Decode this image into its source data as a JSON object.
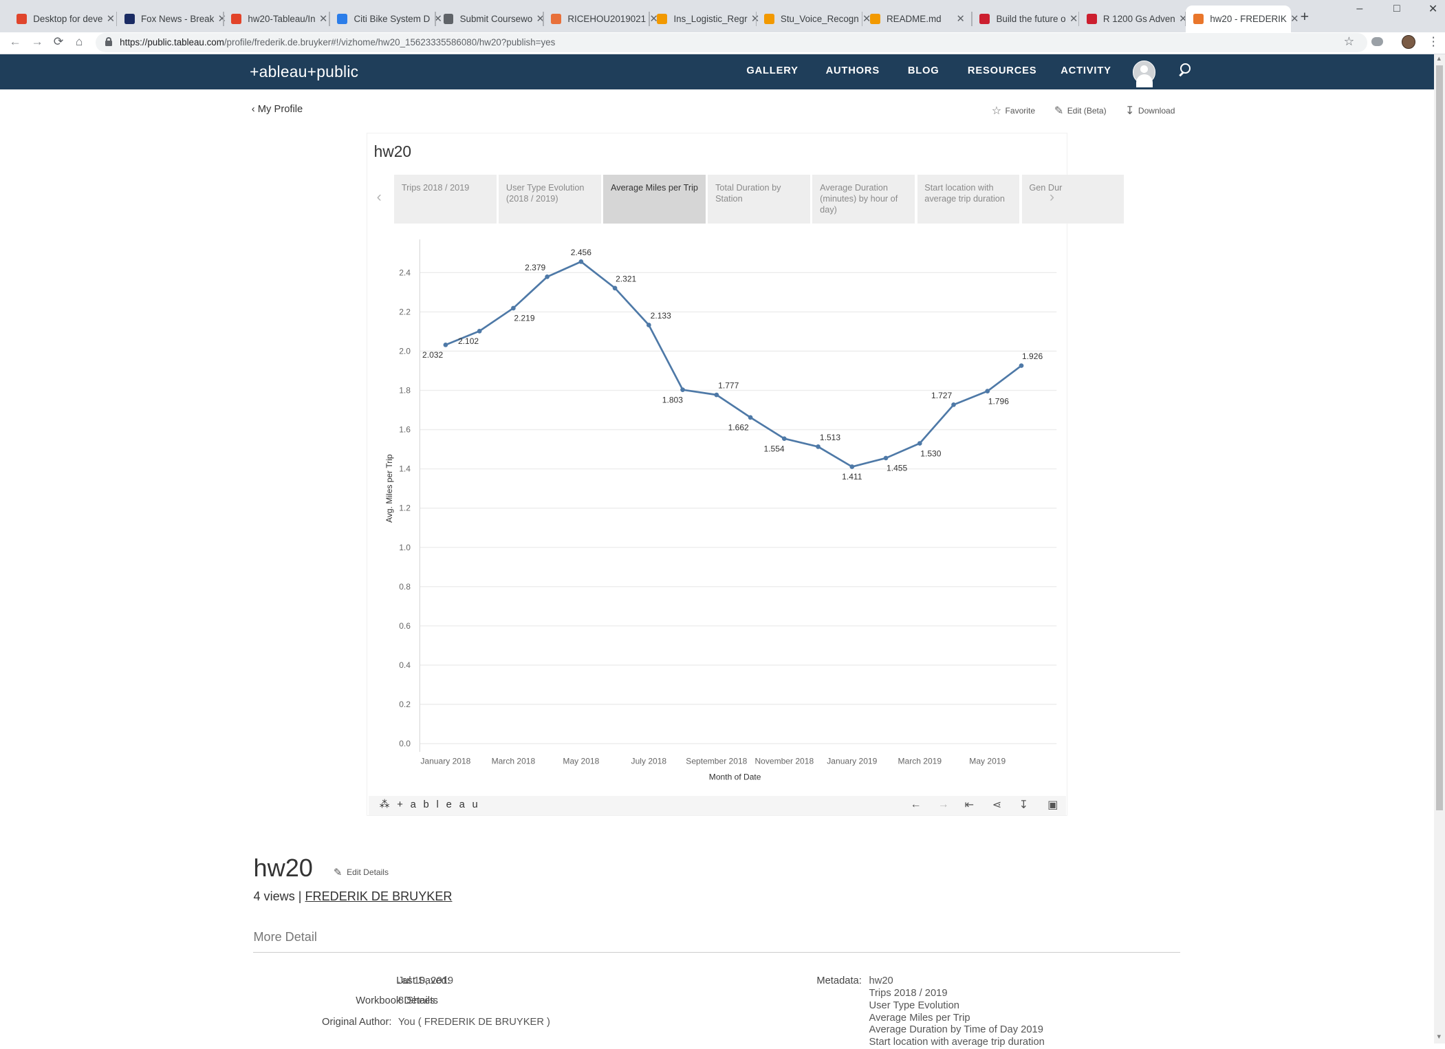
{
  "browser": {
    "tabs": [
      {
        "label": "Desktop for deve",
        "color": "#e0452c"
      },
      {
        "label": "Fox News - Break",
        "color": "#1a2b63"
      },
      {
        "label": "hw20-Tableau/In",
        "color": "#e24329"
      },
      {
        "label": "Citi Bike System D",
        "color": "#2b7de9"
      },
      {
        "label": "Submit Coursewo",
        "color": "#5f6368"
      },
      {
        "label": "RICEHOU2019021",
        "color": "#e8703a"
      },
      {
        "label": "Ins_Logistic_Regr",
        "color": "#f29900"
      },
      {
        "label": "Stu_Voice_Recogn",
        "color": "#f29900"
      },
      {
        "label": "README.md",
        "color": "#f29900"
      },
      {
        "label": "Build the future o",
        "color": "#cc1f2f"
      },
      {
        "label": "R 1200 Gs Adven",
        "color": "#cc1f2f"
      },
      {
        "label": "hw20 - FREDERIK",
        "color": "#e9762b"
      }
    ],
    "new_tab": "+",
    "url_host": "https://public.tableau.com",
    "url_path": "/profile/frederik.de.bruyker#!/vizhome/hw20_15623335586080/hw20?publish=yes"
  },
  "site": {
    "logo": "+ableau+public",
    "nav": [
      "GALLERY",
      "AUTHORS",
      "BLOG",
      "RESOURCES",
      "ACTIVITY"
    ]
  },
  "page": {
    "back_link": "My Profile",
    "favorite": "Favorite",
    "edit": "Edit (Beta)",
    "download": "Download"
  },
  "viz": {
    "title": "hw20",
    "tabs": [
      "Trips 2018 / 2019",
      "User Type Evolution (2018 / 2019)",
      "Average Miles per Trip",
      "Total Duration by Station",
      "Average Duration (minutes) by hour of day)",
      "Start location with average trip duration",
      "Gen Dur"
    ],
    "selected_tab": 2,
    "footer_logo": "+ a b l e a u"
  },
  "chart_data": {
    "type": "line",
    "xlabel": "Month of Date",
    "ylabel": "Avg. Miles per Trip",
    "ylim": [
      0,
      2.5
    ],
    "yticks": [
      "0.0",
      "0.2",
      "0.4",
      "0.6",
      "0.8",
      "1.0",
      "1.2",
      "1.4",
      "1.6",
      "1.8",
      "2.0",
      "2.2",
      "2.4"
    ],
    "x": [
      "January 2018",
      "February 2018",
      "March 2018",
      "April 2018",
      "May 2018",
      "June 2018",
      "July 2018",
      "August 2018",
      "September 2018",
      "October 2018",
      "November 2018",
      "December 2018",
      "January 2019",
      "February 2019",
      "March 2019",
      "April 2019",
      "May 2019",
      "June 2019"
    ],
    "xtick_labels": [
      "January 2018",
      "March 2018",
      "May 2018",
      "July 2018",
      "September 2018",
      "November 2018",
      "January 2019",
      "March 2019",
      "May 2019"
    ],
    "values": [
      2.032,
      2.102,
      2.219,
      2.379,
      2.456,
      2.321,
      2.133,
      1.803,
      1.777,
      1.662,
      1.554,
      1.513,
      1.411,
      1.455,
      1.53,
      1.727,
      1.796,
      1.926
    ],
    "labels": [
      "2.032",
      "2.102",
      "2.219",
      "2.379",
      "2.456",
      "2.321",
      "2.133",
      "1.803",
      "1.777",
      "1.662",
      "1.554",
      "1.513",
      "1.411",
      "1.455",
      "1.530",
      "1.727",
      "1.796",
      "1.926"
    ],
    "line_color": "#4e79a7",
    "grid": true
  },
  "details": {
    "title": "hw20",
    "edit_details": "Edit Details",
    "views": "4 views |",
    "author": "FREDERIK DE BRUYKER",
    "more_detail": "More Detail",
    "last_saved_label": "Last Saved:",
    "last_saved": "Jul 10, 2019",
    "workbook_label": "Workbook Details:",
    "workbook": "8 Sheets",
    "author_label": "Original Author:",
    "original_author": "You ( FREDERIK DE BRUYKER )",
    "metadata_label": "Metadata:",
    "metadata": [
      "hw20",
      "Trips 2018 / 2019",
      "User Type Evolution",
      "Average Miles per Trip",
      "Average Duration by Time of Day 2019",
      "Start location with average trip duration"
    ]
  }
}
